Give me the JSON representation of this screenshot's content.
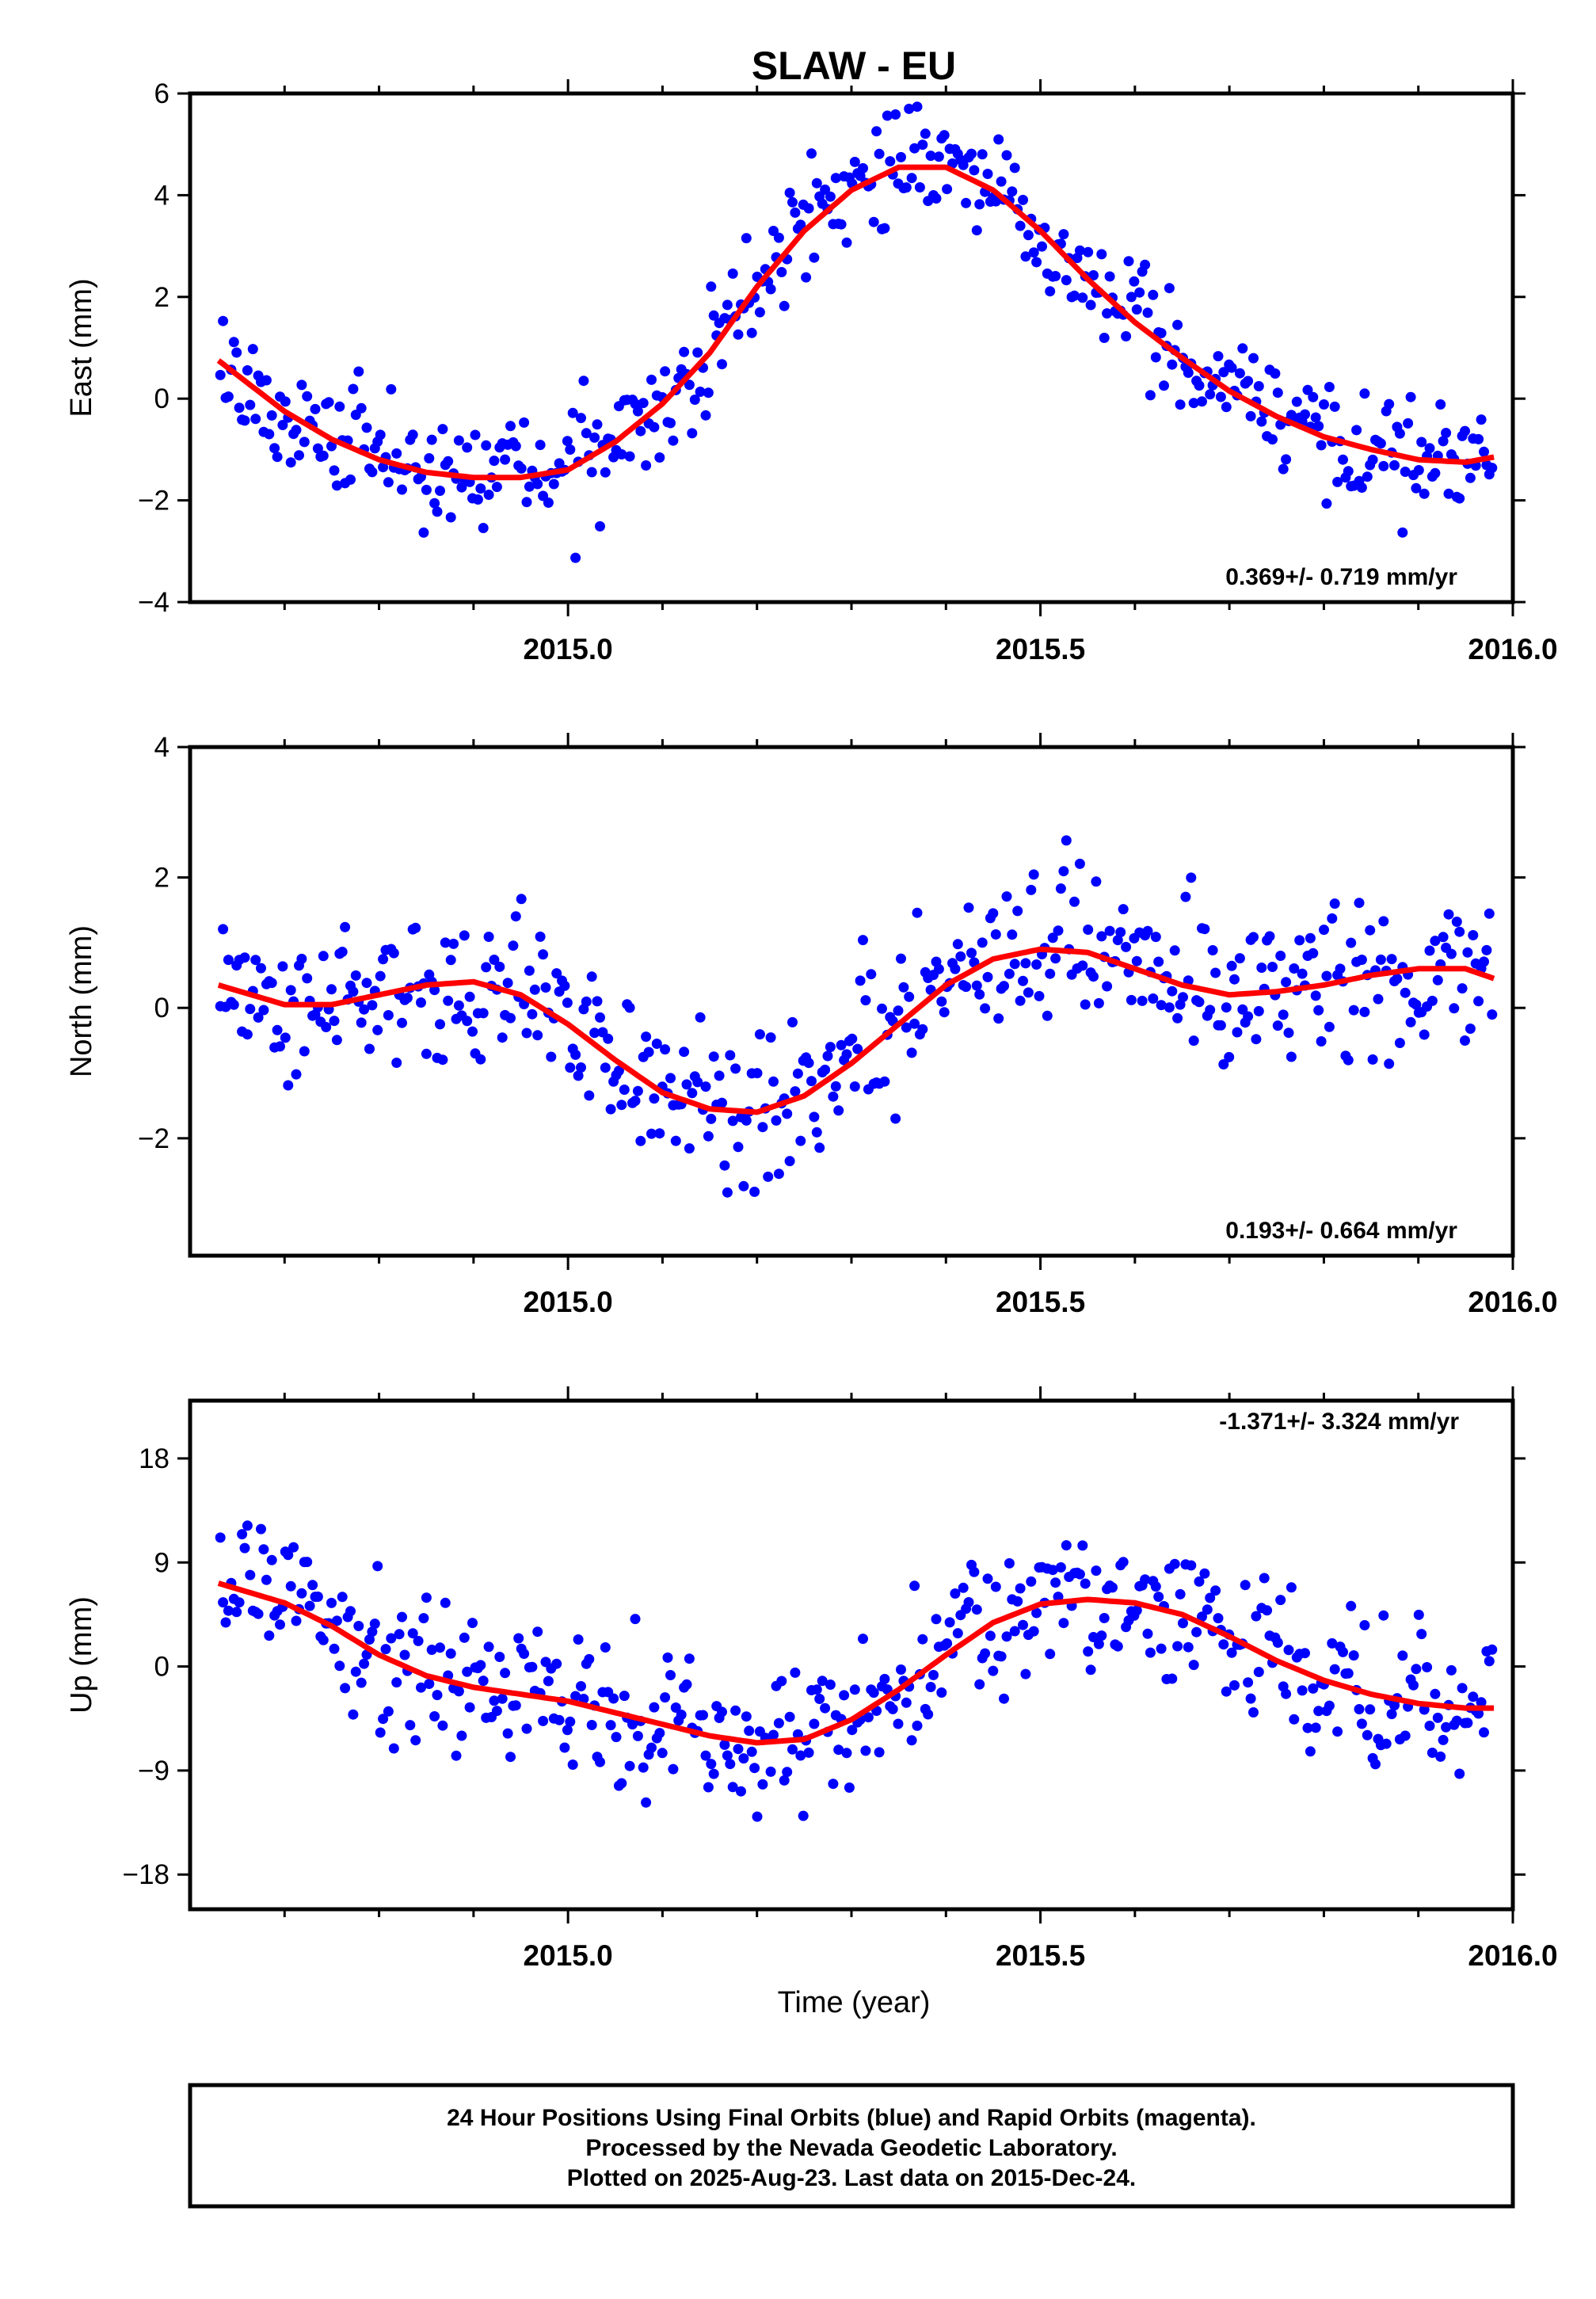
{
  "figure": {
    "title": "SLAW - EU",
    "xlabel": "Time (year)",
    "caption": [
      "24 Hour Positions Using Final Orbits (blue) and Rapid Orbits (magenta).",
      "Processed by the Nevada Geodetic Laboratory.",
      "Plotted on 2025-Aug-23. Last data on 2015-Dec-24."
    ]
  },
  "colors": {
    "final_orbits": "#0000ff",
    "rapid_orbits": "#ff00ff",
    "fit": "#ff0000",
    "axis": "#000000"
  },
  "chart_data": [
    {
      "type": "scatter",
      "name": "east",
      "ylabel": "East (mm)",
      "rate": "0.369+/- 0.719 mm/yr",
      "xlim": [
        2014.6,
        2016.0
      ],
      "ylim": [
        -4,
        6
      ],
      "xticks": [
        {
          "v": 2015.0,
          "label": "2015.0"
        },
        {
          "v": 2015.5,
          "label": "2015.5"
        },
        {
          "v": 2016.0,
          "label": "2016.0"
        }
      ],
      "yticks": [
        {
          "v": -4,
          "label": "−4"
        },
        {
          "v": -2,
          "label": "−2"
        },
        {
          "v": 0,
          "label": "0"
        },
        {
          "v": 2,
          "label": "2"
        },
        {
          "v": 4,
          "label": "4"
        },
        {
          "v": 6,
          "label": "6"
        }
      ],
      "fit": {
        "x": [
          2014.63,
          2014.7,
          2014.75,
          2014.8,
          2014.85,
          2014.9,
          2014.95,
          2015.0,
          2015.05,
          2015.1,
          2015.15,
          2015.2,
          2015.25,
          2015.3,
          2015.35,
          2015.4,
          2015.45,
          2015.5,
          2015.55,
          2015.6,
          2015.65,
          2015.7,
          2015.75,
          2015.8,
          2015.85,
          2015.9,
          2015.95,
          2015.98
        ],
        "y": [
          0.75,
          -0.25,
          -0.8,
          -1.2,
          -1.45,
          -1.55,
          -1.55,
          -1.4,
          -0.85,
          -0.1,
          0.9,
          2.2,
          3.3,
          4.1,
          4.55,
          4.55,
          4.1,
          3.3,
          2.35,
          1.5,
          0.8,
          0.15,
          -0.35,
          -0.75,
          -1.0,
          -1.2,
          -1.25,
          -1.15
        ]
      },
      "scatter_spread": 0.75
    },
    {
      "type": "scatter",
      "name": "north",
      "ylabel": "North (mm)",
      "rate": "0.193+/- 0.664 mm/yr",
      "xlim": [
        2014.6,
        2016.0
      ],
      "ylim": [
        -3.8,
        4.0
      ],
      "xticks": [
        {
          "v": 2015.0,
          "label": "2015.0"
        },
        {
          "v": 2015.5,
          "label": "2015.5"
        },
        {
          "v": 2016.0,
          "label": "2016.0"
        }
      ],
      "yticks": [
        {
          "v": -2,
          "label": "−2"
        },
        {
          "v": 0,
          "label": "0"
        },
        {
          "v": 2,
          "label": "2"
        },
        {
          "v": 4,
          "label": "4"
        }
      ],
      "fit": {
        "x": [
          2014.63,
          2014.7,
          2014.75,
          2014.8,
          2014.85,
          2014.9,
          2014.95,
          2015.0,
          2015.05,
          2015.1,
          2015.15,
          2015.2,
          2015.25,
          2015.3,
          2015.35,
          2015.4,
          2015.45,
          2015.5,
          2015.55,
          2015.6,
          2015.65,
          2015.7,
          2015.75,
          2015.8,
          2015.85,
          2015.9,
          2015.95,
          2015.98
        ],
        "y": [
          0.35,
          0.05,
          0.05,
          0.2,
          0.35,
          0.4,
          0.2,
          -0.25,
          -0.8,
          -1.3,
          -1.55,
          -1.6,
          -1.35,
          -0.85,
          -0.25,
          0.35,
          0.75,
          0.9,
          0.85,
          0.6,
          0.35,
          0.2,
          0.25,
          0.35,
          0.5,
          0.6,
          0.6,
          0.45
        ]
      },
      "scatter_spread": 0.85
    },
    {
      "type": "scatter",
      "name": "up",
      "ylabel": "Up (mm)",
      "rate": "-1.371+/- 3.324 mm/yr",
      "xlim": [
        2014.6,
        2016.0
      ],
      "ylim": [
        -21,
        23
      ],
      "xticks": [
        {
          "v": 2015.0,
          "label": "2015.0"
        },
        {
          "v": 2015.5,
          "label": "2015.5"
        },
        {
          "v": 2016.0,
          "label": "2016.0"
        }
      ],
      "yticks": [
        {
          "v": -18,
          "label": "−18"
        },
        {
          "v": -9,
          "label": "−9"
        },
        {
          "v": 0,
          "label": "0"
        },
        {
          "v": 9,
          "label": "9"
        },
        {
          "v": 18,
          "label": "18"
        }
      ],
      "fit": {
        "x": [
          2014.63,
          2014.7,
          2014.75,
          2014.8,
          2014.85,
          2014.9,
          2014.95,
          2015.0,
          2015.05,
          2015.1,
          2015.15,
          2015.2,
          2015.25,
          2015.3,
          2015.35,
          2015.4,
          2015.45,
          2015.5,
          2015.55,
          2015.6,
          2015.65,
          2015.7,
          2015.75,
          2015.8,
          2015.85,
          2015.9,
          2015.95,
          2015.98
        ],
        "y": [
          7.2,
          5.5,
          3.5,
          1.0,
          -0.8,
          -1.8,
          -2.4,
          -3.0,
          -4.0,
          -5.0,
          -6.0,
          -6.6,
          -6.3,
          -4.6,
          -2.0,
          1.0,
          3.8,
          5.4,
          5.8,
          5.5,
          4.5,
          2.6,
          0.5,
          -1.2,
          -2.4,
          -3.2,
          -3.6,
          -3.6
        ]
      },
      "scatter_spread": 4.2
    }
  ]
}
